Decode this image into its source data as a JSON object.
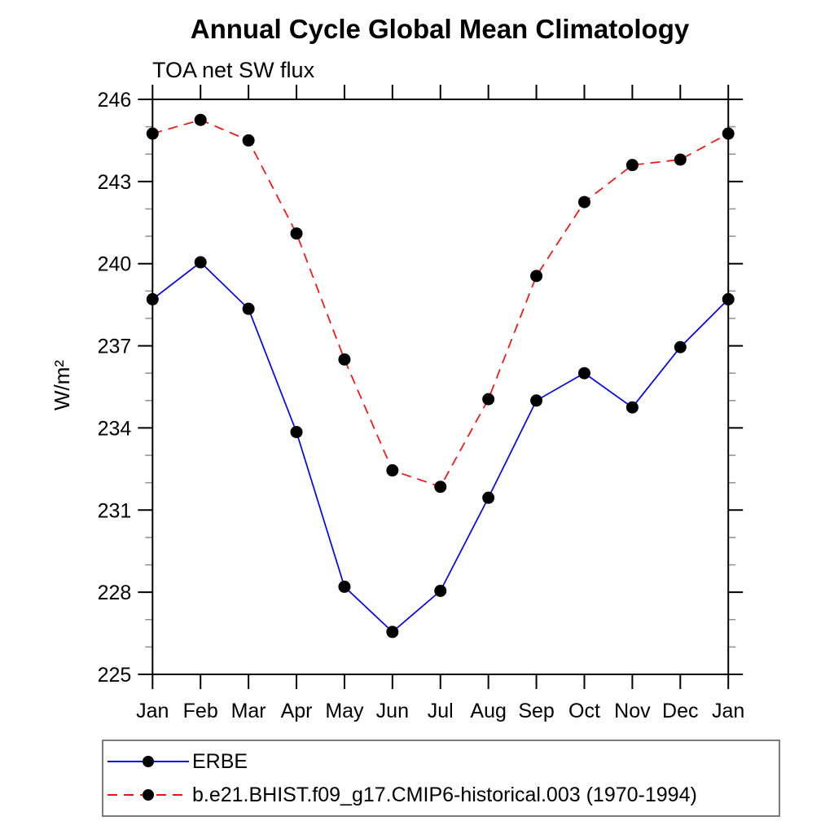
{
  "title": "Annual Cycle Global Mean Climatology",
  "subtitle": "TOA net SW flux",
  "ylabel": "W/m²",
  "chart_data": {
    "type": "line",
    "title": "Annual Cycle Global Mean Climatology",
    "subtitle": "TOA net SW flux",
    "ylabel": "W/m²",
    "x_tick_labels": [
      "Jan",
      "Feb",
      "Mar",
      "Apr",
      "May",
      "Jun",
      "Jul",
      "Aug",
      "Sep",
      "Oct",
      "Nov",
      "Dec",
      "Jan"
    ],
    "y_ticks": [
      225,
      228,
      231,
      234,
      237,
      240,
      243,
      246
    ],
    "ylim": [
      225,
      246
    ],
    "y_minor_step": 1,
    "grid": false,
    "legend_position": "bottom-left-box",
    "frame_color": "#000000",
    "minor_tick_color": "#909090",
    "marker": "filled-circle",
    "marker_color": "#000000",
    "series": [
      {
        "name": "ERBE",
        "color": "#0000f5",
        "line_style": "solid",
        "values": [
          238.7,
          240.05,
          238.35,
          233.85,
          228.2,
          226.55,
          228.05,
          231.45,
          235.0,
          236.0,
          234.75,
          236.95,
          238.7
        ]
      },
      {
        "name": "b.e21.BHIST.f09_g17.CMIP6-historical.003 (1970-1994)",
        "color": "#fb0d0d",
        "line_style": "dashed",
        "values": [
          244.75,
          245.25,
          244.5,
          241.1,
          236.5,
          232.45,
          231.85,
          235.05,
          239.55,
          242.25,
          243.6,
          243.8,
          244.75
        ]
      }
    ]
  }
}
